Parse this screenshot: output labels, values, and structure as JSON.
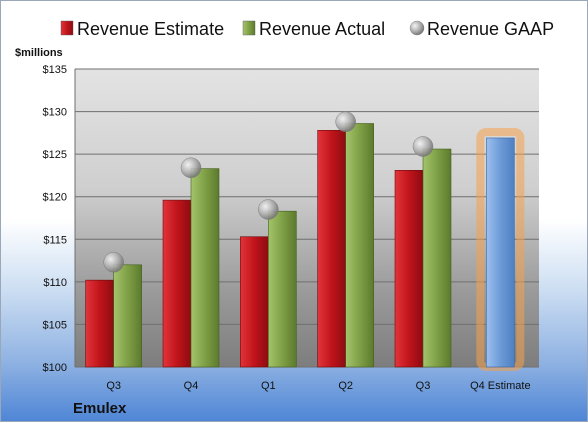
{
  "chart_data": {
    "type": "bar",
    "company": "Emulex",
    "y_unit_label": "$millions",
    "ylim": [
      100,
      135
    ],
    "y_ticks": [
      "$100",
      "$105",
      "$110",
      "$115",
      "$120",
      "$125",
      "$130",
      "$135"
    ],
    "y_tick_values": [
      100,
      105,
      110,
      115,
      120,
      125,
      130,
      135
    ],
    "categories": [
      "Q3",
      "Q4",
      "Q1",
      "Q2",
      "Q3",
      "Q4 Estimate"
    ],
    "series": [
      {
        "name": "Revenue Estimate",
        "color": "#c0141b",
        "values": [
          110.2,
          119.6,
          115.3,
          127.8,
          123.1,
          null
        ]
      },
      {
        "name": "Revenue Actual",
        "color": "#7fa046",
        "values": [
          112.0,
          123.3,
          118.3,
          128.6,
          125.6,
          null
        ]
      },
      {
        "name": "Revenue GAAP",
        "color": "#a8a8a8",
        "type": "marker",
        "values": [
          112.3,
          123.4,
          118.5,
          128.8,
          125.9,
          null
        ]
      }
    ],
    "forecast": {
      "category": "Q4 Estimate",
      "value": 126.9,
      "color": "#6d9bd8",
      "glow": "#f5a04a"
    },
    "grid": true,
    "legend_position": "top"
  }
}
